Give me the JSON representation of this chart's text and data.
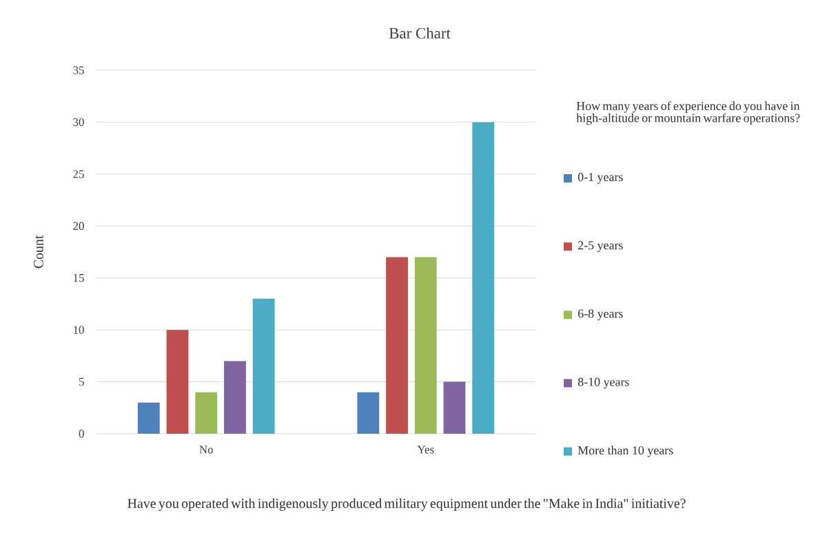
{
  "chart_data": {
    "type": "bar",
    "title": "Bar Chart",
    "xlabel": "Have you operated with indigenously produced military equipment under the \"Make in India\" initiative?",
    "ylabel": "Count",
    "legend_title": "How many years of experience do you have in high-altitude or mountain warfare operations?",
    "categories": [
      "No",
      "Yes"
    ],
    "series": [
      {
        "name": "0-1 years",
        "color": "#4f81bd",
        "values": [
          3,
          4
        ]
      },
      {
        "name": "2-5 years",
        "color": "#c0504d",
        "values": [
          10,
          17
        ]
      },
      {
        "name": "6-8 years",
        "color": "#9bbb59",
        "values": [
          4,
          17
        ]
      },
      {
        "name": "8-10 years",
        "color": "#8064a2",
        "values": [
          7,
          5
        ]
      },
      {
        "name": "More than 10 years",
        "color": "#4bacc6",
        "values": [
          13,
          30
        ]
      }
    ],
    "ylim": [
      0,
      35
    ],
    "yticks": [
      0,
      5,
      10,
      15,
      20,
      25,
      30,
      35
    ],
    "grid": "y",
    "legend": "right"
  }
}
